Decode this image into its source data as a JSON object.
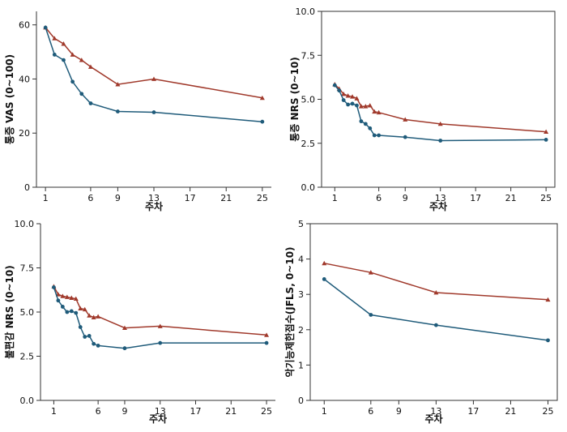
{
  "colors": {
    "series_a": "#A0392B",
    "series_b": "#1F5B7A",
    "axis": "#333333"
  },
  "chart_data": [
    {
      "type": "line",
      "ylabel": "통증 VAS (0~100)",
      "xlabel": "주차",
      "xticks": [
        1,
        6,
        9,
        13,
        17,
        21,
        25
      ],
      "yticks": [
        0,
        20,
        40,
        60
      ],
      "ytick_labels": [
        "0",
        "20",
        "40",
        "60"
      ],
      "xlim": [
        0,
        26
      ],
      "ylim": [
        0,
        65
      ],
      "series": [
        {
          "color": "#A0392B",
          "marker": "triangle",
          "x": [
            1,
            2,
            3,
            4,
            5,
            6,
            9,
            13,
            25
          ],
          "y": [
            59,
            55,
            53,
            49,
            47,
            44.5,
            38,
            40,
            33
          ]
        },
        {
          "color": "#1F5B7A",
          "marker": "circle",
          "x": [
            1,
            2,
            3,
            4,
            5,
            6,
            9,
            13,
            25
          ],
          "y": [
            59,
            49,
            47,
            39,
            34.5,
            31,
            28,
            27.7,
            24.2
          ]
        }
      ]
    },
    {
      "type": "line",
      "ylabel": "통증 NRS (0~10)",
      "xlabel": "주차",
      "xticks": [
        1,
        6,
        9,
        13,
        17,
        21,
        25
      ],
      "yticks": [
        0,
        2.5,
        5,
        7.5,
        10
      ],
      "ytick_labels": [
        "0.0",
        "2.5",
        "5.0",
        "7.5",
        "10.0"
      ],
      "xlim": [
        -0.5,
        26
      ],
      "ylim": [
        0,
        10
      ],
      "series": [
        {
          "color": "#A0392B",
          "marker": "triangle",
          "x": [
            1,
            1.5,
            2,
            2.5,
            3,
            3.5,
            4,
            4.5,
            5,
            5.5,
            6,
            9,
            13,
            25
          ],
          "y": [
            5.85,
            5.6,
            5.3,
            5.2,
            5.15,
            5.05,
            4.6,
            4.6,
            4.65,
            4.3,
            4.25,
            3.85,
            3.6,
            3.15
          ]
        },
        {
          "color": "#1F5B7A",
          "marker": "circle",
          "x": [
            1,
            1.5,
            2,
            2.5,
            3,
            3.5,
            4,
            4.5,
            5,
            5.5,
            6,
            9,
            13,
            25
          ],
          "y": [
            5.8,
            5.5,
            4.95,
            4.7,
            4.75,
            4.65,
            3.75,
            3.6,
            3.35,
            2.95,
            2.95,
            2.85,
            2.65,
            2.7
          ]
        }
      ]
    },
    {
      "type": "line",
      "ylabel": "불편감 NRS (0~10)",
      "xlabel": "주차",
      "xticks": [
        1,
        6,
        9,
        13,
        17,
        21,
        25
      ],
      "yticks": [
        0,
        2.5,
        5,
        7.5,
        10
      ],
      "ytick_labels": [
        "0.0",
        "2.5",
        "5.0",
        "7.5",
        "10.0"
      ],
      "xlim": [
        -0.5,
        26
      ],
      "ylim": [
        0,
        10
      ],
      "series": [
        {
          "color": "#A0392B",
          "marker": "triangle",
          "x": [
            1,
            1.5,
            2,
            2.5,
            3,
            3.5,
            4,
            4.5,
            5,
            5.5,
            6,
            9,
            13,
            25
          ],
          "y": [
            6.45,
            6,
            5.9,
            5.85,
            5.8,
            5.75,
            5.2,
            5.15,
            4.8,
            4.7,
            4.75,
            4.1,
            4.2,
            3.7
          ]
        },
        {
          "color": "#1F5B7A",
          "marker": "circle",
          "x": [
            1,
            1.5,
            2,
            2.5,
            3,
            3.5,
            4,
            4.5,
            5,
            5.5,
            6,
            9,
            13,
            25
          ],
          "y": [
            6.4,
            5.65,
            5.3,
            5.0,
            5.05,
            4.95,
            4.15,
            3.6,
            3.65,
            3.2,
            3.1,
            2.95,
            3.25,
            3.25
          ]
        }
      ]
    },
    {
      "type": "line",
      "ylabel": "악기능제한점수(JFLS, 0~10)",
      "xlabel": "주차",
      "xticks": [
        1,
        6,
        9,
        13,
        17,
        21,
        25
      ],
      "yticks": [
        0,
        1,
        2,
        3,
        4,
        5
      ],
      "ytick_labels": [
        "0",
        "1",
        "2",
        "3",
        "4",
        "5"
      ],
      "xlim": [
        -0.5,
        26
      ],
      "ylim": [
        0,
        5
      ],
      "series": [
        {
          "color": "#A0392B",
          "marker": "triangle",
          "x": [
            1,
            6,
            13,
            25
          ],
          "y": [
            3.88,
            3.62,
            3.05,
            2.85
          ]
        },
        {
          "color": "#1F5B7A",
          "marker": "circle",
          "x": [
            1,
            6,
            13,
            25
          ],
          "y": [
            3.43,
            2.42,
            2.13,
            1.7
          ]
        }
      ]
    }
  ]
}
